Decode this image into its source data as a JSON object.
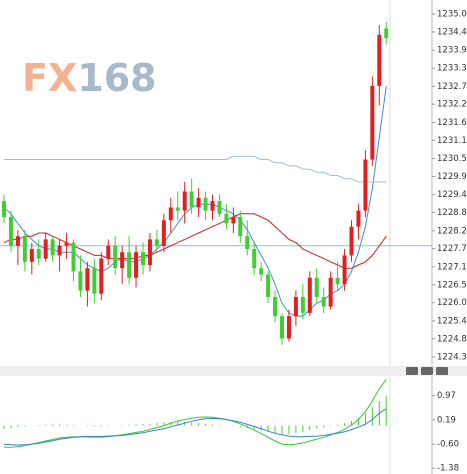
{
  "watermark": {
    "left": "FX",
    "right": "168"
  },
  "chart_data": [
    {
      "type": "candlestick",
      "up_color": "#e02020",
      "down_color": "#44cc33",
      "open": [
        1229.2,
        1228.7,
        1227.8,
        1228.1,
        1227.3,
        1227.7,
        1227.4,
        1228.0,
        1227.5,
        1227.8,
        1227.9,
        1227.0,
        1226.4,
        1227.1,
        1226.3,
        1227.4,
        1227.8,
        1227.1,
        1227.6,
        1226.8,
        1227.6,
        1227.2,
        1228.0,
        1227.8,
        1228.6,
        1229.0,
        1228.9,
        1229.5,
        1229.0,
        1229.3,
        1228.9,
        1229.2,
        1228.8,
        1228.5,
        1228.7,
        1228.1,
        1227.7,
        1227.1,
        1226.9,
        1226.2,
        1225.6,
        1224.9,
        1225.6,
        1226.2,
        1225.7,
        1226.8,
        1226.2,
        1225.9,
        1226.8,
        1226.6,
        1227.5,
        1228.4,
        1228.9,
        1230.5,
        1232.8,
        1234.6
      ],
      "high": [
        1229.4,
        1228.9,
        1228.3,
        1228.3,
        1227.9,
        1228.0,
        1228.2,
        1228.1,
        1228.0,
        1228.2,
        1228.0,
        1227.5,
        1227.3,
        1227.4,
        1227.6,
        1228.0,
        1228.1,
        1227.8,
        1228.1,
        1227.8,
        1227.9,
        1228.2,
        1228.3,
        1228.8,
        1229.3,
        1229.5,
        1229.8,
        1229.9,
        1229.6,
        1229.5,
        1229.4,
        1229.4,
        1229.1,
        1229.0,
        1228.9,
        1228.6,
        1227.9,
        1227.3,
        1227.0,
        1226.4,
        1225.7,
        1225.8,
        1226.4,
        1226.6,
        1227.0,
        1227.1,
        1226.5,
        1227.0,
        1227.3,
        1227.7,
        1228.6,
        1229.1,
        1230.8,
        1233.1,
        1234.7,
        1234.8
      ],
      "low": [
        1228.5,
        1227.6,
        1227.2,
        1227.0,
        1226.9,
        1227.2,
        1227.3,
        1227.3,
        1227.0,
        1227.4,
        1226.7,
        1226.2,
        1225.9,
        1226.0,
        1226.1,
        1227.2,
        1226.9,
        1226.6,
        1226.6,
        1226.5,
        1226.9,
        1227.0,
        1227.6,
        1227.6,
        1228.2,
        1228.6,
        1228.5,
        1228.8,
        1228.7,
        1228.6,
        1228.6,
        1228.7,
        1228.3,
        1228.2,
        1227.9,
        1227.5,
        1226.9,
        1226.7,
        1226.0,
        1225.4,
        1224.7,
        1224.8,
        1225.3,
        1225.5,
        1225.6,
        1226.0,
        1225.7,
        1225.8,
        1226.4,
        1226.4,
        1227.3,
        1228.0,
        1228.7,
        1230.3,
        1232.2,
        1234.1
      ],
      "close": [
        1228.7,
        1227.8,
        1228.1,
        1227.3,
        1227.7,
        1227.4,
        1228.0,
        1227.5,
        1227.8,
        1227.9,
        1227.0,
        1226.4,
        1227.1,
        1226.3,
        1227.4,
        1227.8,
        1227.1,
        1227.6,
        1226.8,
        1227.6,
        1227.2,
        1228.0,
        1227.8,
        1228.6,
        1229.0,
        1228.9,
        1229.5,
        1229.0,
        1229.3,
        1228.9,
        1229.2,
        1228.8,
        1228.5,
        1228.7,
        1228.1,
        1227.7,
        1227.1,
        1226.9,
        1226.2,
        1225.6,
        1224.9,
        1225.6,
        1226.2,
        1225.7,
        1226.8,
        1226.2,
        1225.9,
        1226.8,
        1226.6,
        1227.5,
        1228.4,
        1228.9,
        1230.5,
        1232.8,
        1234.4,
        1234.3
      ],
      "overlays": [
        {
          "color": "#3a8fd8",
          "values": [
            1229.0,
            1228.8,
            1228.5,
            1228.2,
            1228.0,
            1227.8,
            1227.7,
            1227.7,
            1227.6,
            1227.6,
            1227.6,
            1227.4,
            1227.2,
            1227.1,
            1227.0,
            1227.1,
            1227.3,
            1227.4,
            1227.3,
            1227.3,
            1227.4,
            1227.5,
            1227.7,
            1227.9,
            1228.2,
            1228.5,
            1228.8,
            1229.0,
            1229.1,
            1229.1,
            1229.1,
            1229.0,
            1228.9,
            1228.8,
            1228.6,
            1228.3,
            1227.9,
            1227.5,
            1227.1,
            1226.6,
            1226.0,
            1225.7,
            1225.6,
            1225.6,
            1225.8,
            1226.0,
            1226.1,
            1226.3,
            1226.4,
            1226.6,
            1227.0,
            1227.6,
            1228.4,
            1229.6,
            1231.2,
            1232.8
          ]
        },
        {
          "color": "#cc2222",
          "values": [
            1227.9,
            1228.0,
            1228.0,
            1228.1,
            1228.1,
            1228.2,
            1228.2,
            1228.1,
            1228.0,
            1227.9,
            1227.8,
            1227.7,
            1227.6,
            1227.5,
            1227.5,
            1227.4,
            1227.4,
            1227.4,
            1227.4,
            1227.4,
            1227.5,
            1227.5,
            1227.6,
            1227.7,
            1227.8,
            1227.9,
            1228.0,
            1228.1,
            1228.2,
            1228.3,
            1228.4,
            1228.5,
            1228.6,
            1228.7,
            1228.8,
            1228.8,
            1228.8,
            1228.7,
            1228.6,
            1228.4,
            1228.2,
            1228.0,
            1227.9,
            1227.7,
            1227.6,
            1227.5,
            1227.4,
            1227.3,
            1227.2,
            1227.1,
            1227.1,
            1227.2,
            1227.3,
            1227.5,
            1227.8,
            1228.1
          ]
        },
        {
          "color": "#9cc0e0",
          "values": [
            1230.5,
            1230.5,
            1230.5,
            1230.5,
            1230.5,
            1230.5,
            1230.5,
            1230.5,
            1230.5,
            1230.5,
            1230.5,
            1230.5,
            1230.5,
            1230.5,
            1230.5,
            1230.5,
            1230.5,
            1230.5,
            1230.5,
            1230.5,
            1230.5,
            1230.5,
            1230.5,
            1230.5,
            1230.5,
            1230.5,
            1230.5,
            1230.5,
            1230.5,
            1230.5,
            1230.5,
            1230.5,
            1230.5,
            1230.6,
            1230.6,
            1230.6,
            1230.6,
            1230.5,
            1230.5,
            1230.4,
            1230.4,
            1230.3,
            1230.3,
            1230.2,
            1230.2,
            1230.1,
            1230.1,
            1230.0,
            1230.0,
            1229.9,
            1229.9,
            1229.8,
            1229.8,
            1229.8,
            1229.8,
            1229.8
          ]
        }
      ],
      "level": 1227.8,
      "level_color": "#7ec8e0",
      "ylim": [
        1224.04,
        1235.49
      ],
      "yticks": [
        1235.05,
        1234.49,
        1233.92,
        1233.36,
        1232.79,
        1232.23,
        1231.66,
        {
          "value": 1231.1,
          "label": "1231.10"
        },
        1230.53,
        1229.97,
        {
          "value": 1229.4,
          "label": "1229.40"
        },
        1228.84,
        1228.27,
        1227.71,
        1227.14,
        1226.58,
        1226.02,
        1225.45,
        1224.89,
        1224.32
      ]
    },
    {
      "type": "macd",
      "histogram": {
        "color": "#44cc33",
        "values": [
          -0.1,
          -0.08,
          -0.05,
          -0.03,
          0,
          0.02,
          0.03,
          0.04,
          0.04,
          0.03,
          0.02,
          0,
          -0.02,
          -0.03,
          -0.03,
          -0.02,
          0,
          0.02,
          0.03,
          0.04,
          0.05,
          0.06,
          0.08,
          0.1,
          0.12,
          0.13,
          0.12,
          0.1,
          0.08,
          0.06,
          0.04,
          0.02,
          0,
          -0.02,
          -0.05,
          -0.08,
          -0.12,
          -0.16,
          -0.2,
          -0.25,
          -0.3,
          -0.28,
          -0.24,
          -0.2,
          -0.15,
          -0.1,
          -0.06,
          -0.02,
          0.03,
          0.08,
          0.15,
          0.25,
          0.4,
          0.6,
          0.8,
          0.95
        ]
      },
      "series": [
        {
          "color": "#33cc33",
          "values": [
            -0.7,
            -0.7,
            -0.68,
            -0.65,
            -0.6,
            -0.55,
            -0.5,
            -0.45,
            -0.4,
            -0.38,
            -0.36,
            -0.36,
            -0.37,
            -0.38,
            -0.38,
            -0.36,
            -0.33,
            -0.3,
            -0.26,
            -0.22,
            -0.18,
            -0.12,
            -0.06,
            0,
            0.08,
            0.15,
            0.2,
            0.24,
            0.27,
            0.28,
            0.27,
            0.24,
            0.2,
            0.14,
            0.06,
            -0.04,
            -0.15,
            -0.26,
            -0.38,
            -0.5,
            -0.6,
            -0.62,
            -0.6,
            -0.56,
            -0.5,
            -0.44,
            -0.38,
            -0.3,
            -0.22,
            -0.12,
            0.02,
            0.2,
            0.45,
            0.8,
            1.2,
            1.5
          ]
        },
        {
          "color": "#3a7fd0",
          "values": [
            -0.6,
            -0.62,
            -0.63,
            -0.62,
            -0.6,
            -0.57,
            -0.53,
            -0.49,
            -0.44,
            -0.41,
            -0.38,
            -0.36,
            -0.35,
            -0.35,
            -0.35,
            -0.34,
            -0.33,
            -0.32,
            -0.29,
            -0.26,
            -0.23,
            -0.18,
            -0.14,
            -0.1,
            -0.04,
            0.02,
            0.08,
            0.14,
            0.19,
            0.22,
            0.23,
            0.22,
            0.2,
            0.16,
            0.11,
            0.04,
            -0.03,
            -0.1,
            -0.18,
            -0.25,
            -0.3,
            -0.34,
            -0.36,
            -0.36,
            -0.35,
            -0.34,
            -0.32,
            -0.28,
            -0.25,
            -0.2,
            -0.13,
            -0.05,
            0.05,
            0.2,
            0.4,
            0.55
          ]
        }
      ],
      "ylim": [
        -1.57,
        1.61
      ],
      "yticks": [
        0.97,
        0.19,
        {
          "value": -0.6,
          "label": "-0.60"
        },
        -1.38
      ]
    }
  ]
}
